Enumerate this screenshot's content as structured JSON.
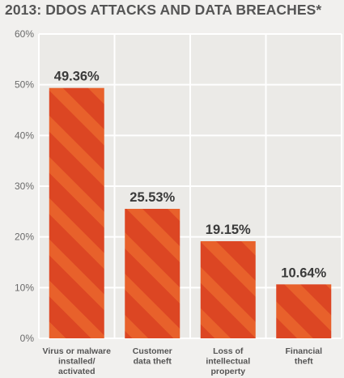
{
  "chart_data": {
    "type": "bar",
    "title": "2013: DDOS ATTACKS AND DATA BREACHES*",
    "categories": [
      [
        "Virus or malware",
        "installed/",
        "activated"
      ],
      [
        "Customer",
        "data theft"
      ],
      [
        "Loss of",
        "intellectual",
        "property"
      ],
      [
        "Financial",
        "theft"
      ]
    ],
    "values": [
      49.36,
      25.53,
      19.15,
      10.64
    ],
    "value_labels": [
      "49.36%",
      "25.53%",
      "19.15%",
      "10.64%"
    ],
    "ylim": [
      0,
      60
    ],
    "yticks": [
      0,
      10,
      20,
      30,
      40,
      50,
      60
    ],
    "ytick_labels": [
      "0%",
      "10%",
      "20%",
      "30%",
      "40%",
      "50%",
      "60%"
    ],
    "grid": true,
    "colors": {
      "bar": "#dc4623",
      "stripe": "#e8612b",
      "grid": "#ffffff",
      "label": "#3a3a3a",
      "tick": "#6a6a6a"
    }
  }
}
